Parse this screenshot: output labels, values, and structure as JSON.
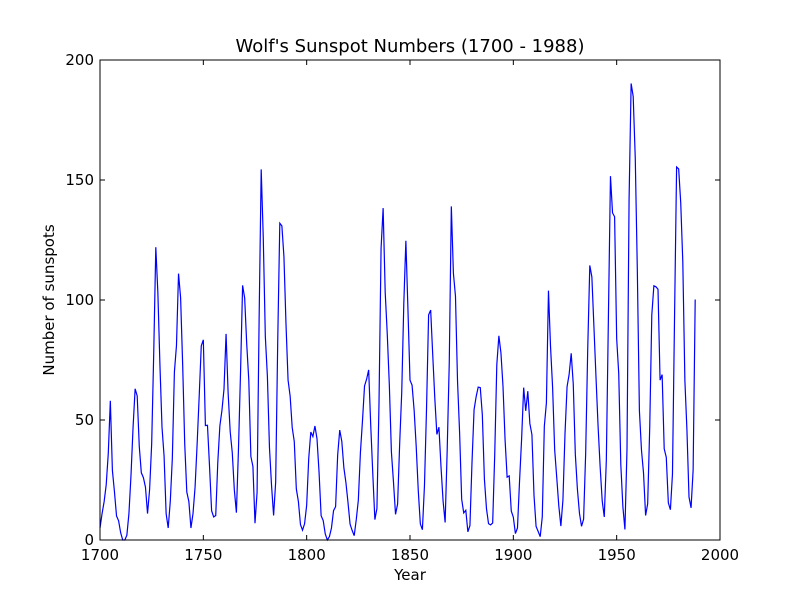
{
  "chart_data": {
    "type": "line",
    "title": "Wolf's Sunspot Numbers (1700 - 1988)",
    "xlabel": "Year",
    "ylabel": "Number of sunspots",
    "xlim": [
      1700,
      2000
    ],
    "ylim": [
      0,
      200
    ],
    "xticks": [
      "1700",
      "1750",
      "1800",
      "1850",
      "1900",
      "1950",
      "2000"
    ],
    "yticks": [
      "0",
      "50",
      "100",
      "150",
      "200"
    ],
    "grid": false,
    "line_color": "#0000ff",
    "series": [
      {
        "x": [
          1700,
          1701,
          1702,
          1703,
          1704,
          1705,
          1706,
          1707,
          1708,
          1709,
          1710,
          1711,
          1712,
          1713,
          1714,
          1715,
          1716,
          1717,
          1718,
          1719,
          1720,
          1721,
          1722,
          1723,
          1724,
          1725,
          1726,
          1727,
          1728,
          1729,
          1730,
          1731,
          1732,
          1733,
          1734,
          1735,
          1736,
          1737,
          1738,
          1739,
          1740,
          1741,
          1742,
          1743,
          1744,
          1745,
          1746,
          1747,
          1748,
          1749,
          1750,
          1751,
          1752,
          1753,
          1754,
          1755,
          1756,
          1757,
          1758,
          1759,
          1760,
          1761,
          1762,
          1763,
          1764,
          1765,
          1766,
          1767,
          1768,
          1769,
          1770,
          1771,
          1772,
          1773,
          1774,
          1775,
          1776,
          1777,
          1778,
          1779,
          1780,
          1781,
          1782,
          1783,
          1784,
          1785,
          1786,
          1787,
          1788,
          1789,
          1790,
          1791,
          1792,
          1793,
          1794,
          1795,
          1796,
          1797,
          1798,
          1799,
          1800,
          1801,
          1802,
          1803,
          1804,
          1805,
          1806,
          1807,
          1808,
          1809,
          1810,
          1811,
          1812,
          1813,
          1814,
          1815,
          1816,
          1817,
          1818,
          1819,
          1820,
          1821,
          1822,
          1823,
          1824,
          1825,
          1826,
          1827,
          1828,
          1829,
          1830,
          1831,
          1832,
          1833,
          1834,
          1835,
          1836,
          1837,
          1838,
          1839,
          1840,
          1841,
          1842,
          1843,
          1844,
          1845,
          1846,
          1847,
          1848,
          1849,
          1850,
          1851,
          1852,
          1853,
          1854,
          1855,
          1856,
          1857,
          1858,
          1859,
          1860,
          1861,
          1862,
          1863,
          1864,
          1865,
          1866,
          1867,
          1868,
          1869,
          1870,
          1871,
          1872,
          1873,
          1874,
          1875,
          1876,
          1877,
          1878,
          1879,
          1880,
          1881,
          1882,
          1883,
          1884,
          1885,
          1886,
          1887,
          1888,
          1889,
          1890,
          1891,
          1892,
          1893,
          1894,
          1895,
          1896,
          1897,
          1898,
          1899,
          1900,
          1901,
          1902,
          1903,
          1904,
          1905,
          1906,
          1907,
          1908,
          1909,
          1910,
          1911,
          1912,
          1913,
          1914,
          1915,
          1916,
          1917,
          1918,
          1919,
          1920,
          1921,
          1922,
          1923,
          1924,
          1925,
          1926,
          1927,
          1928,
          1929,
          1930,
          1931,
          1932,
          1933,
          1934,
          1935,
          1936,
          1937,
          1938,
          1939,
          1940,
          1941,
          1942,
          1943,
          1944,
          1945,
          1946,
          1947,
          1948,
          1949,
          1950,
          1951,
          1952,
          1953,
          1954,
          1955,
          1956,
          1957,
          1958,
          1959,
          1960,
          1961,
          1962,
          1963,
          1964,
          1965,
          1966,
          1967,
          1968,
          1969,
          1970,
          1971,
          1972,
          1973,
          1974,
          1975,
          1976,
          1977,
          1978,
          1979,
          1980,
          1981,
          1982,
          1983,
          1984,
          1985,
          1986,
          1987,
          1988
        ],
        "y": [
          5,
          11,
          16,
          23,
          36,
          58,
          29,
          20,
          10,
          8,
          3,
          0,
          0,
          2,
          11,
          27,
          47,
          63,
          60,
          39,
          28,
          26,
          22,
          11,
          21,
          40,
          78,
          122,
          103,
          73,
          47,
          35,
          11,
          5,
          16,
          34,
          70,
          81,
          111,
          101,
          73,
          40,
          20,
          16,
          5,
          11,
          22,
          40,
          60,
          80.9,
          83.4,
          47.7,
          47.8,
          30.7,
          12.2,
          9.6,
          10.2,
          32.4,
          47.6,
          54,
          62.9,
          85.9,
          61.2,
          45.1,
          36.4,
          20.9,
          11.4,
          37.8,
          69.8,
          106.1,
          100.8,
          81.6,
          66.5,
          34.8,
          30.6,
          7,
          19.8,
          92.5,
          154.4,
          125.9,
          84.8,
          68.1,
          38.5,
          22.8,
          10.2,
          24.1,
          82.9,
          132,
          130.9,
          118.1,
          89.9,
          66.6,
          60,
          46.9,
          41,
          21.3,
          16,
          6.4,
          4.1,
          6.8,
          14.5,
          34,
          45,
          43.1,
          47.5,
          42.2,
          28.1,
          10.1,
          8.1,
          2.5,
          0,
          1.4,
          5,
          12.2,
          13.9,
          35.4,
          45.8,
          41.1,
          30.1,
          23.9,
          15.6,
          6.6,
          4,
          1.8,
          8.5,
          16.6,
          36.3,
          49.6,
          64.2,
          67,
          70.9,
          47.8,
          27.5,
          8.5,
          13.2,
          56.9,
          121.5,
          138.3,
          103.2,
          85.7,
          64.6,
          36.7,
          24.2,
          10.7,
          15,
          40.1,
          61.5,
          98.5,
          124.7,
          96.3,
          66.6,
          64.5,
          54.1,
          39,
          20.6,
          6.7,
          4.3,
          22.7,
          54.8,
          93.8,
          95.8,
          77.2,
          59.1,
          44,
          47,
          30.5,
          16.3,
          7.3,
          37.6,
          74,
          139,
          111.2,
          101.6,
          66.2,
          44.7,
          17,
          11.3,
          12.4,
          3.4,
          6,
          32.3,
          54.3,
          59.7,
          63.7,
          63.5,
          52.2,
          25.4,
          13.1,
          6.8,
          6.3,
          7.1,
          35.6,
          73,
          85.1,
          78,
          64,
          41.8,
          26.2,
          26.7,
          12.1,
          9.5,
          2.7,
          5,
          24.4,
          42,
          63.5,
          53.8,
          62,
          48.5,
          43.9,
          18.6,
          5.7,
          3.6,
          1.4,
          9.6,
          47.4,
          57.1,
          103.9,
          80.6,
          63.6,
          37.6,
          26.1,
          14.2,
          5.8,
          16.7,
          44.3,
          63.9,
          69,
          77.8,
          64.9,
          35.7,
          21.2,
          11.1,
          5.7,
          8.7,
          36.1,
          79.7,
          114.4,
          109.6,
          88.8,
          67.8,
          47.5,
          30.6,
          16.3,
          9.6,
          33.2,
          92.6,
          151.6,
          136.3,
          134.7,
          83.9,
          69.4,
          31.5,
          13.9,
          4.4,
          38,
          141.7,
          190.2,
          184.8,
          159,
          112.3,
          53.9,
          37.5,
          27.9,
          10.2,
          15.1,
          47,
          93.8,
          105.9,
          105.5,
          104.5,
          66.6,
          68.9,
          38,
          34.5,
          15.5,
          12.6,
          27.5,
          92.5,
          155.4,
          154.6,
          140.5,
          115.9,
          66.6,
          45.9,
          17.9,
          13.4,
          29.2,
          100.2
        ]
      }
    ]
  }
}
